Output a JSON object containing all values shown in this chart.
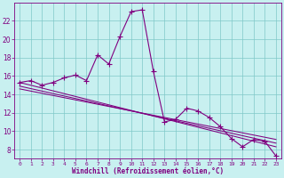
{
  "xlabel": "Windchill (Refroidissement éolien,°C)",
  "bg_color": "#c8f0f0",
  "line_color": "#800080",
  "grid_color": "#80c8c8",
  "hours": [
    0,
    1,
    2,
    3,
    4,
    5,
    6,
    7,
    8,
    9,
    10,
    11,
    12,
    13,
    14,
    15,
    16,
    17,
    18,
    19,
    20,
    21,
    22,
    23
  ],
  "windchill": [
    15.3,
    15.5,
    15.0,
    15.3,
    15.8,
    16.1,
    15.5,
    18.3,
    17.3,
    20.3,
    23.0,
    23.2,
    16.5,
    11.0,
    11.3,
    12.5,
    12.2,
    11.5,
    10.5,
    9.2,
    8.3,
    9.1,
    8.9,
    7.3
  ],
  "reg_lines": [
    {
      "x0": 0,
      "y0": 15.3,
      "x1": 23,
      "y1": 8.3
    },
    {
      "x0": 0,
      "y0": 14.9,
      "x1": 23,
      "y1": 8.7
    },
    {
      "x0": 0,
      "y0": 14.6,
      "x1": 23,
      "y1": 9.1
    }
  ],
  "ylim": [
    7,
    24
  ],
  "yticks": [
    8,
    10,
    12,
    14,
    16,
    18,
    20,
    22
  ],
  "xlim": [
    -0.5,
    23.5
  ],
  "xticks": [
    0,
    1,
    2,
    3,
    4,
    5,
    6,
    7,
    8,
    9,
    10,
    11,
    12,
    13,
    14,
    15,
    16,
    17,
    18,
    19,
    20,
    21,
    22,
    23
  ]
}
